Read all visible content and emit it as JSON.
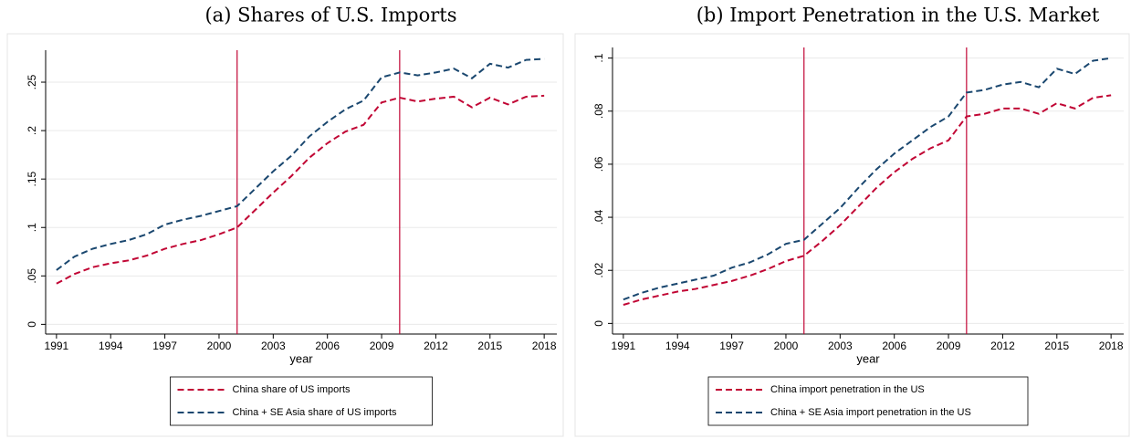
{
  "chart_data": [
    {
      "type": "line",
      "title": "(a) Shares of U.S. Imports",
      "xlabel": "year",
      "x": [
        1991,
        1992,
        1993,
        1994,
        1995,
        1996,
        1997,
        1998,
        1999,
        2000,
        2001,
        2002,
        2003,
        2004,
        2005,
        2006,
        2007,
        2008,
        2009,
        2010,
        2011,
        2012,
        2013,
        2014,
        2015,
        2016,
        2017,
        2018
      ],
      "series": [
        {
          "name": "China share of US imports",
          "color": "#c10534",
          "values": [
            0.042,
            0.052,
            0.059,
            0.063,
            0.066,
            0.071,
            0.078,
            0.083,
            0.087,
            0.093,
            0.1,
            0.118,
            0.136,
            0.153,
            0.172,
            0.187,
            0.199,
            0.206,
            0.229,
            0.234,
            0.23,
            0.233,
            0.235,
            0.224,
            0.234,
            0.227,
            0.235,
            0.236
          ]
        },
        {
          "name": "China + SE Asia share of US imports",
          "color": "#1a476f",
          "values": [
            0.056,
            0.07,
            0.078,
            0.083,
            0.087,
            0.093,
            0.103,
            0.108,
            0.112,
            0.117,
            0.122,
            0.14,
            0.158,
            0.174,
            0.194,
            0.209,
            0.222,
            0.231,
            0.255,
            0.26,
            0.257,
            0.26,
            0.264,
            0.254,
            0.269,
            0.265,
            0.273,
            0.274
          ]
        }
      ],
      "xlim": [
        1990.4,
        2018.7
      ],
      "xticks": [
        1991,
        1994,
        1997,
        2000,
        2003,
        2006,
        2009,
        2012,
        2015,
        2018
      ],
      "ylim": [
        -0.01,
        0.283
      ],
      "yticks": [
        0,
        {
          "value": 0.05,
          "label": ".05"
        },
        {
          "value": 0.1,
          "label": ".1"
        },
        {
          "value": 0.15,
          "label": ".15"
        },
        {
          "value": 0.2,
          "label": ".2"
        },
        {
          "value": 0.25,
          "label": ".25"
        }
      ],
      "vlines": [
        2001,
        2010
      ],
      "vline_color": "#c10534",
      "grid": true,
      "legend": "bottom"
    },
    {
      "type": "line",
      "title": "(b) Import Penetration in the U.S. Market",
      "xlabel": "year",
      "x": [
        1991,
        1992,
        1993,
        1994,
        1995,
        1996,
        1997,
        1998,
        1999,
        2000,
        2001,
        2002,
        2003,
        2004,
        2005,
        2006,
        2007,
        2008,
        2009,
        2010,
        2011,
        2012,
        2013,
        2014,
        2015,
        2016,
        2017,
        2018
      ],
      "series": [
        {
          "name": "China import penetration in the US",
          "color": "#c10534",
          "values": [
            0.007,
            0.009,
            0.0105,
            0.012,
            0.013,
            0.0145,
            0.016,
            0.018,
            0.0205,
            0.0235,
            0.0255,
            0.031,
            0.037,
            0.044,
            0.051,
            0.057,
            0.062,
            0.066,
            0.069,
            0.078,
            0.079,
            0.081,
            0.081,
            0.079,
            0.083,
            0.081,
            0.085,
            0.086
          ]
        },
        {
          "name": "China + SE Asia import penetration in the US",
          "color": "#1a476f",
          "values": [
            0.009,
            0.0115,
            0.0135,
            0.015,
            0.0165,
            0.018,
            0.021,
            0.023,
            0.026,
            0.03,
            0.0315,
            0.0375,
            0.0435,
            0.051,
            0.058,
            0.064,
            0.069,
            0.074,
            0.078,
            0.087,
            0.088,
            0.09,
            0.091,
            0.089,
            0.096,
            0.094,
            0.099,
            0.1
          ]
        }
      ],
      "xlim": [
        1990.4,
        2018.7
      ],
      "xticks": [
        1991,
        1994,
        1997,
        2000,
        2003,
        2006,
        2009,
        2012,
        2015,
        2018
      ],
      "ylim": [
        -0.004,
        0.104
      ],
      "yticks": [
        0,
        {
          "value": 0.02,
          "label": ".02"
        },
        {
          "value": 0.04,
          "label": ".04"
        },
        {
          "value": 0.06,
          "label": ".06"
        },
        {
          "value": 0.08,
          "label": ".08"
        },
        {
          "value": 0.1,
          "label": ".1"
        }
      ],
      "vlines": [
        2001,
        2010
      ],
      "vline_color": "#c10534",
      "grid": true,
      "legend": "bottom"
    }
  ]
}
